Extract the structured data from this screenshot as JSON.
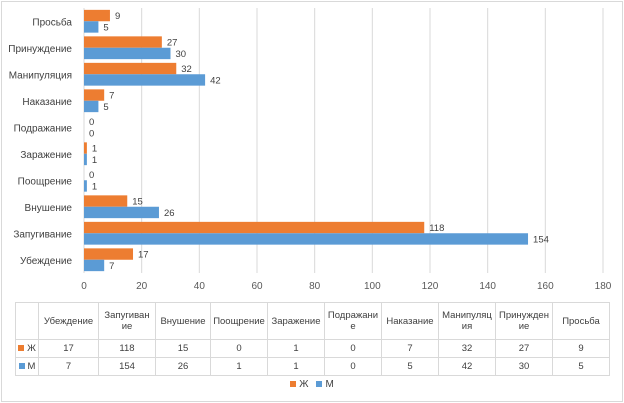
{
  "chart_data": {
    "type": "bar",
    "orientation": "horizontal",
    "categories": [
      "Убеждение",
      "Запугивание",
      "Внушение",
      "Поощрение",
      "Заражение",
      "Подражание",
      "Наказание",
      "Манипуляция",
      "Принуждение",
      "Просьба"
    ],
    "table_headers": [
      "Убеждение",
      "Запугиван ие",
      "Внушение",
      "Поощрение",
      "Заражение",
      "Подражани е",
      "Наказание",
      "Манипуляц ия",
      "Принужден ие",
      "Просьба"
    ],
    "series": [
      {
        "name": "Ж",
        "color": "#ed7d31",
        "values": [
          17,
          118,
          15,
          0,
          1,
          0,
          7,
          32,
          27,
          9
        ]
      },
      {
        "name": "М",
        "color": "#5b9bd5",
        "values": [
          7,
          154,
          26,
          1,
          1,
          0,
          5,
          42,
          30,
          5
        ]
      }
    ],
    "xlim": [
      0,
      180
    ],
    "xticks": [
      "0",
      "20",
      "40",
      "60",
      "80",
      "100",
      "120",
      "140",
      "160",
      "180"
    ],
    "grid": true,
    "legend": "bottom",
    "data_table": true
  }
}
